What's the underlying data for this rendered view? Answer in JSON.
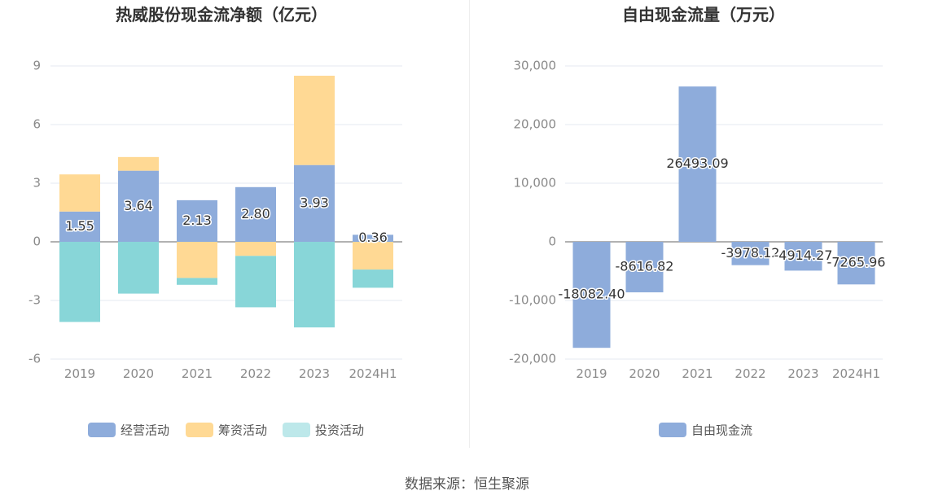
{
  "colors": {
    "operating": "#8eacdb",
    "financing": "#ffd994",
    "investing": "#88d6d8",
    "investing_legend": "#bde8ea",
    "fcf": "#8eacdb",
    "grid": "#e6e9f0",
    "axis_text": "#8a8a8a",
    "title_text": "#333333"
  },
  "source_text": "数据来源：恒生聚源",
  "chart_data": [
    {
      "type": "bar",
      "stacked": true,
      "title": "热威股份现金流净额（亿元）",
      "categories": [
        "2019",
        "2020",
        "2021",
        "2022",
        "2023",
        "2024H1"
      ],
      "ylim": [
        -6,
        9
      ],
      "yticks": [
        "9",
        "6",
        "3",
        "0",
        "-3",
        "-6"
      ],
      "grid": true,
      "legend_position": "bottom",
      "series": [
        {
          "name": "经营活动",
          "values": [
            1.55,
            3.64,
            2.13,
            2.8,
            3.93,
            0.36
          ],
          "labels": [
            "1.55",
            "3.64",
            "2.13",
            "2.80",
            "3.93",
            "0.36"
          ]
        },
        {
          "name": "筹资活动",
          "values": [
            1.9,
            0.7,
            -1.85,
            -0.72,
            4.57,
            -1.42
          ]
        },
        {
          "name": "投资活动",
          "values": [
            -4.1,
            -2.65,
            -0.35,
            -2.63,
            -4.38,
            -0.93
          ]
        }
      ]
    },
    {
      "type": "bar",
      "title": "自由现金流量（万元）",
      "categories": [
        "2019",
        "2020",
        "2021",
        "2022",
        "2023",
        "2024H1"
      ],
      "ylim": [
        -20000,
        30000
      ],
      "yticks": [
        "30,000",
        "20,000",
        "10,000",
        "0",
        "-10,000",
        "-20,000"
      ],
      "grid": true,
      "legend_position": "bottom",
      "series": [
        {
          "name": "自由现金流",
          "values": [
            -18082.4,
            -8616.82,
            26493.09,
            -3978.12,
            -4914.27,
            -7265.96
          ],
          "labels": [
            "-18082.40",
            "-8616.82",
            "26493.09",
            "-3978.12",
            "-4914.27",
            "-7265.96"
          ]
        }
      ]
    }
  ]
}
